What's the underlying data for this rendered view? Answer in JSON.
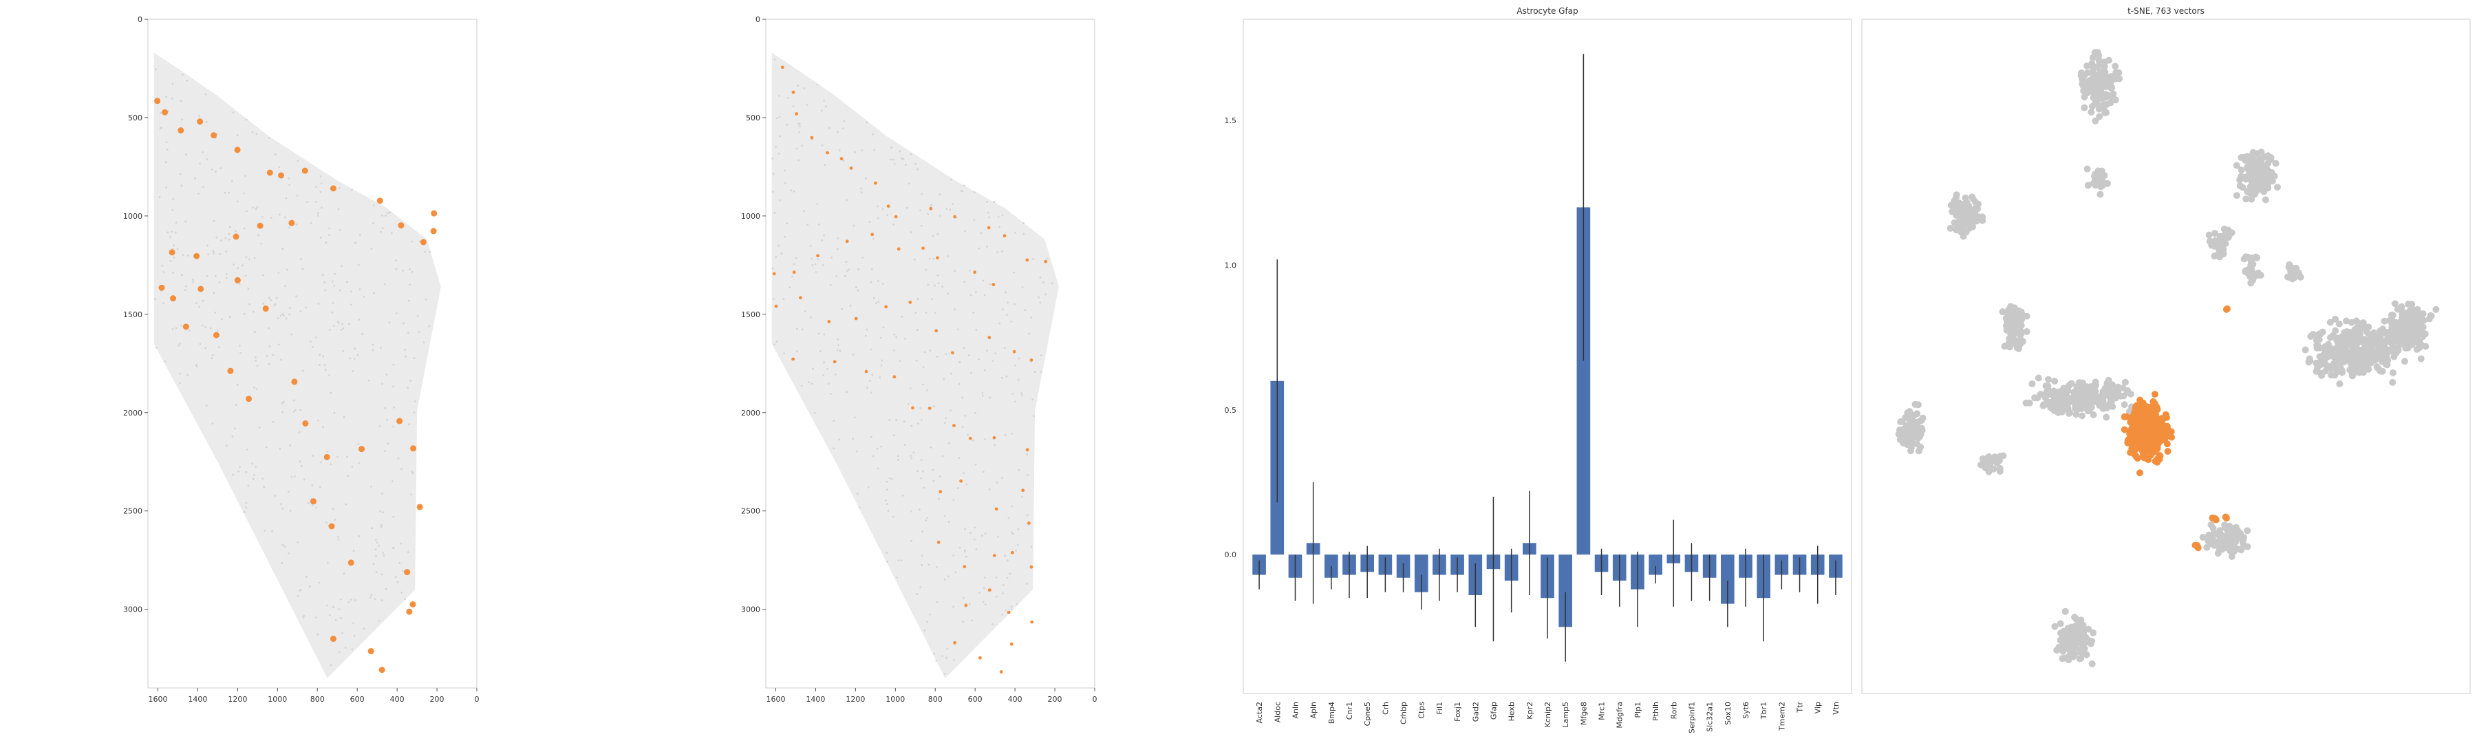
{
  "colors": {
    "highlight": "#f28e3c",
    "background_cells": "#e6e6e6",
    "bar": "#4c72b0",
    "error": "#333333",
    "tsne_other": "#c8c8c8",
    "frame": "#cccccc"
  },
  "chart_data": [
    {
      "type": "scatter",
      "title": "",
      "xlabel": "",
      "ylabel": "",
      "xlim": [
        1650,
        0
      ],
      "ylim": [
        3400,
        0
      ],
      "x_ticks": [
        "1600",
        "1400",
        "1200",
        "1000",
        "800",
        "600",
        "400",
        "200",
        "0"
      ],
      "y_ticks": [
        "0",
        "500",
        "1000",
        "1500",
        "2000",
        "2500",
        "3000"
      ],
      "grid": false,
      "series": [
        {
          "role": "all-cells",
          "color": "#e6e6e6",
          "region": [
            [
              1620,
              170
            ],
            [
              1500,
              250
            ],
            [
              1300,
              390
            ],
            [
              1050,
              590
            ],
            [
              700,
              820
            ],
            [
              450,
              960
            ],
            [
              250,
              1120
            ],
            [
              180,
              1360
            ],
            [
              300,
              1990
            ],
            [
              310,
              2900
            ],
            [
              750,
              3350
            ],
            [
              1300,
              2250
            ],
            [
              1620,
              1650
            ]
          ]
        },
        {
          "role": "selected",
          "color": "#f28e3c",
          "points": [
            [
              1603,
              415
            ],
            [
              1565,
              473
            ],
            [
              1485,
              565
            ],
            [
              1389,
              520
            ],
            [
              1320,
              590
            ],
            [
              1201,
              664
            ],
            [
              1038,
              780
            ],
            [
              982,
              794
            ],
            [
              862,
              770
            ],
            [
              720,
              860
            ],
            [
              486,
              923
            ],
            [
              380,
              1048
            ],
            [
              215,
              987
            ],
            [
              217,
              1077
            ],
            [
              268,
              1133
            ],
            [
              1529,
              1185
            ],
            [
              1406,
              1204
            ],
            [
              1208,
              1105
            ],
            [
              1087,
              1050
            ],
            [
              929,
              1036
            ],
            [
              1581,
              1365
            ],
            [
              1524,
              1419
            ],
            [
              1385,
              1371
            ],
            [
              1200,
              1327
            ],
            [
              1059,
              1471
            ],
            [
              1459,
              1563
            ],
            [
              1307,
              1606
            ],
            [
              1236,
              1788
            ],
            [
              1144,
              1930
            ],
            [
              915,
              1843
            ],
            [
              860,
              2055
            ],
            [
              752,
              2226
            ],
            [
              578,
              2185
            ],
            [
              388,
              2043
            ],
            [
              319,
              2182
            ],
            [
              820,
              2451
            ],
            [
              728,
              2578
            ],
            [
              631,
              2763
            ],
            [
              350,
              2811
            ],
            [
              321,
              2975
            ],
            [
              720,
              3150
            ],
            [
              531,
              3213
            ],
            [
              476,
              3308
            ],
            [
              339,
              3012
            ],
            [
              286,
              2480
            ]
          ]
        }
      ]
    },
    {
      "type": "scatter",
      "title": "",
      "xlabel": "",
      "ylabel": "",
      "xlim": [
        1650,
        0
      ],
      "ylim": [
        3400,
        0
      ],
      "x_ticks": [
        "1600",
        "1400",
        "1200",
        "1000",
        "800",
        "600",
        "400",
        "200",
        "0"
      ],
      "y_ticks": [
        "0",
        "500",
        "1000",
        "1500",
        "2000",
        "2500",
        "3000"
      ],
      "grid": false,
      "series": [
        {
          "role": "all-cells",
          "color": "#e6e6e6",
          "region": [
            [
              1620,
              170
            ],
            [
              1500,
              250
            ],
            [
              1300,
              390
            ],
            [
              1050,
              590
            ],
            [
              700,
              820
            ],
            [
              450,
              960
            ],
            [
              250,
              1120
            ],
            [
              180,
              1360
            ],
            [
              300,
              1990
            ],
            [
              310,
              2900
            ],
            [
              750,
              3350
            ],
            [
              1300,
              2250
            ],
            [
              1620,
              1650
            ]
          ]
        },
        {
          "role": "selected",
          "color": "#f28e3c",
          "points": [
            [
              1566,
              244
            ],
            [
              1512,
              371
            ],
            [
              1496,
              481
            ],
            [
              1419,
              602
            ],
            [
              1341,
              679
            ],
            [
              1270,
              709
            ],
            [
              1222,
              757
            ],
            [
              1100,
              833
            ],
            [
              1035,
              950
            ],
            [
              997,
              1004
            ],
            [
              822,
              963
            ],
            [
              702,
              1004
            ],
            [
              531,
              1060
            ],
            [
              452,
              1101
            ],
            [
              339,
              1224
            ],
            [
              246,
              1232
            ],
            [
              1608,
              1294
            ],
            [
              1508,
              1286
            ],
            [
              1389,
              1202
            ],
            [
              1242,
              1129
            ],
            [
              1116,
              1094
            ],
            [
              983,
              1168
            ],
            [
              861,
              1164
            ],
            [
              789,
              1213
            ],
            [
              602,
              1286
            ],
            [
              508,
              1349
            ],
            [
              1598,
              1459
            ],
            [
              1476,
              1416
            ],
            [
              1333,
              1537
            ],
            [
              1197,
              1522
            ],
            [
              1047,
              1462
            ],
            [
              926,
              1439
            ],
            [
              795,
              1584
            ],
            [
              713,
              1696
            ],
            [
              529,
              1618
            ],
            [
              403,
              1690
            ],
            [
              318,
              1733
            ],
            [
              1513,
              1728
            ],
            [
              1304,
              1741
            ],
            [
              1146,
              1791
            ],
            [
              1005,
              1818
            ],
            [
              913,
              1976
            ],
            [
              828,
              1978
            ],
            [
              706,
              2066
            ],
            [
              624,
              2131
            ],
            [
              504,
              2128
            ],
            [
              338,
              2189
            ],
            [
              774,
              2402
            ],
            [
              671,
              2348
            ],
            [
              493,
              2490
            ],
            [
              360,
              2395
            ],
            [
              330,
              2562
            ],
            [
              783,
              2659
            ],
            [
              653,
              2783
            ],
            [
              503,
              2727
            ],
            [
              413,
              2712
            ],
            [
              318,
              2785
            ],
            [
              646,
              2980
            ],
            [
              527,
              2902
            ],
            [
              431,
              3016
            ],
            [
              315,
              3065
            ],
            [
              702,
              3170
            ],
            [
              575,
              3247
            ],
            [
              469,
              3318
            ],
            [
              417,
              3177
            ]
          ]
        }
      ]
    },
    {
      "type": "bar",
      "title": "Astrocyte Gfap",
      "xlabel": "",
      "ylabel": "",
      "ylim": [
        -0.48,
        1.85
      ],
      "y_ticks": [
        "0.0",
        "0.5",
        "1.0",
        "1.5"
      ],
      "grid": false,
      "categories": [
        "Acta2",
        "Aldoc",
        "Anln",
        "Apln",
        "Bmp4",
        "Cnr1",
        "Cpne5",
        "Crh",
        "Crhbp",
        "Ctps",
        "Fil1",
        "Foxj1",
        "Gad2",
        "Gfap",
        "Hexb",
        "Kpr2",
        "Kcnip2",
        "Lamp5",
        "Mfge8",
        "Mrc1",
        "Mdgfra",
        "Plp1",
        "Pthlh",
        "Rorb",
        "Serpinf1",
        "Slc32a1",
        "Sox10",
        "Syt6",
        "Tbr1",
        "Tmem2",
        "Ttr",
        "Vip",
        "Vtn"
      ],
      "values": [
        -0.07,
        0.6,
        -0.08,
        0.04,
        -0.08,
        -0.07,
        -0.06,
        -0.07,
        -0.08,
        -0.13,
        -0.07,
        -0.07,
        -0.14,
        -0.05,
        -0.09,
        0.04,
        -0.15,
        -0.25,
        1.2,
        -0.06,
        -0.09,
        -0.12,
        -0.07,
        -0.03,
        -0.06,
        -0.08,
        -0.17,
        -0.08,
        -0.15,
        -0.07,
        -0.07,
        -0.07,
        -0.08
      ],
      "errors": [
        0.05,
        0.42,
        0.08,
        0.21,
        0.04,
        0.08,
        0.09,
        0.06,
        0.05,
        0.06,
        0.09,
        0.06,
        0.11,
        0.25,
        0.11,
        0.18,
        0.14,
        0.12,
        0.53,
        0.08,
        0.09,
        0.13,
        0.03,
        0.15,
        0.1,
        0.08,
        0.08,
        0.1,
        0.15,
        0.05,
        0.06,
        0.1,
        0.06
      ]
    },
    {
      "type": "scatter",
      "title": "t-SNE, 763 vectors",
      "xlabel": "",
      "ylabel": "",
      "xlim": [
        0,
        100
      ],
      "ylim": [
        0,
        100
      ],
      "axes_visible": false,
      "grid": false,
      "series": [
        {
          "role": "other-clusters",
          "color": "#c8c8c8",
          "clusters": [
            [
              39,
              10,
              4,
              6,
              140
            ],
            [
              65,
              23,
              4,
              5,
              160
            ],
            [
              17,
              29,
              3.5,
              4,
              90
            ],
            [
              39,
              24,
              2.5,
              2.5,
              30
            ],
            [
              59,
              33,
              2.5,
              3,
              40
            ],
            [
              64,
              37,
              2,
              3,
              30
            ],
            [
              71,
              38,
              1.5,
              2,
              20
            ],
            [
              25,
              46,
              2.5,
              5,
              90
            ],
            [
              36,
              56,
              11,
              3.5,
              230
            ],
            [
              81,
              49,
              10,
              6,
              330
            ],
            [
              90,
              46,
              5,
              5,
              160
            ],
            [
              8,
              61,
              3,
              5,
              90
            ],
            [
              21,
              66,
              2.5,
              2,
              30
            ],
            [
              60,
              77,
              4.5,
              3,
              90
            ],
            [
              35,
              92,
              4,
              4.5,
              110
            ]
          ]
        },
        {
          "role": "selected",
          "color": "#f28e3c",
          "clusters": [
            [
              47,
              61,
              4.5,
              6.5,
              300
            ],
            [
              58,
              74,
              0.6,
              0.6,
              4
            ],
            [
              60,
              74,
              0.5,
              0.5,
              3
            ],
            [
              55,
              78,
              0.5,
              0.5,
              3
            ],
            [
              60,
              43,
              0.4,
              0.4,
              2
            ]
          ]
        }
      ]
    }
  ]
}
